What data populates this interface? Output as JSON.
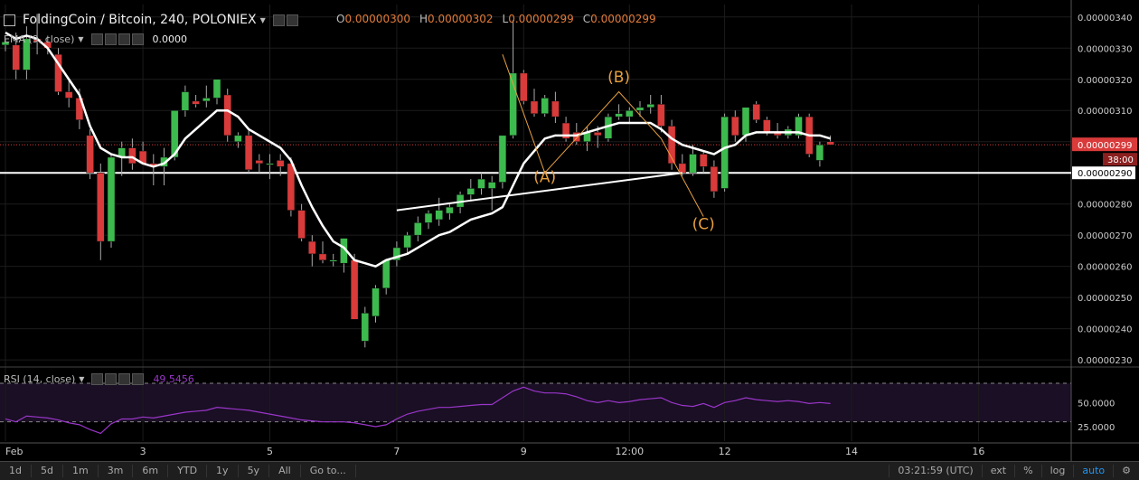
{
  "header": {
    "title": "FoldingCoin / Bitcoin, 240, POLONIEX",
    "ohlc": [
      {
        "key": "O",
        "value": "0.00000300"
      },
      {
        "key": "H",
        "value": "0.00000302"
      },
      {
        "key": "L",
        "value": "0.00000299"
      },
      {
        "key": "C",
        "value": "0.00000299"
      }
    ]
  },
  "ema_legend": {
    "label": "EMA (9, close)",
    "value": "0.0000"
  },
  "rsi_legend": {
    "label": "RSI (14, close)",
    "value": "49.5456"
  },
  "colors": {
    "up": "#3dba4e",
    "down": "#d93a3a",
    "ema": "#ffffff",
    "rsi": "#9a35c9",
    "annotation": "#e8a040",
    "price_badge": "#d93a3a"
  },
  "toolbar": {
    "timeframes": [
      "1d",
      "5d",
      "1m",
      "3m",
      "6m",
      "YTD",
      "1y",
      "5y",
      "All",
      "Go to..."
    ],
    "clock": "03:21:59 (UTC)",
    "right": [
      "ext",
      "%",
      "log",
      "auto"
    ]
  },
  "chart_data": [
    {
      "type": "candlestick",
      "title": "FoldingCoin / Bitcoin, 240, POLONIEX",
      "x_ticks": [
        {
          "label": "Feb",
          "index": 0
        },
        {
          "label": "3",
          "index": 13
        },
        {
          "label": "5",
          "index": 25
        },
        {
          "label": "7",
          "index": 37
        },
        {
          "label": "9",
          "index": 49
        },
        {
          "label": "12:00",
          "index": 59
        },
        {
          "label": "12",
          "index": 68
        },
        {
          "label": "14",
          "index": 80
        },
        {
          "label": "16",
          "index": 92
        }
      ],
      "y_range": [
        2.28e-06,
        3.44e-06
      ],
      "y_ticks": [
        "0.00000340",
        "0.00000330",
        "0.00000320",
        "0.00000310",
        "0.00000300",
        "0.00000290",
        "0.00000280",
        "0.00000270",
        "0.00000260",
        "0.00000250",
        "0.00000240",
        "0.00000230"
      ],
      "price_marker": {
        "value": 2.99e-06,
        "label": "0.00000299",
        "countdown": "38:00"
      },
      "horizontal_line": {
        "value": 2.9e-06,
        "label": "0.00000290"
      },
      "candles": [
        [
          3.31e-06,
          3.33e-06,
          3.29e-06,
          3.32e-06
        ],
        [
          3.31e-06,
          3.35e-06,
          3.2e-06,
          3.23e-06
        ],
        [
          3.23e-06,
          3.37e-06,
          3.2e-06,
          3.33e-06
        ],
        [
          3.33e-06,
          3.41e-06,
          3.28e-06,
          3.32e-06
        ],
        [
          3.32e-06,
          3.34e-06,
          3.28e-06,
          3.3e-06
        ],
        [
          3.28e-06,
          3.3e-06,
          3.15e-06,
          3.16e-06
        ],
        [
          3.16e-06,
          3.2e-06,
          3.11e-06,
          3.14e-06
        ],
        [
          3.14e-06,
          3.17e-06,
          3.04e-06,
          3.07e-06
        ],
        [
          3.02e-06,
          3.04e-06,
          2.88e-06,
          2.9e-06
        ],
        [
          2.9e-06,
          2.93e-06,
          2.62e-06,
          2.68e-06
        ],
        [
          2.68e-06,
          2.96e-06,
          2.66e-06,
          2.95e-06
        ],
        [
          2.95e-06,
          3e-06,
          2.89e-06,
          2.98e-06
        ],
        [
          2.98e-06,
          3.01e-06,
          2.91e-06,
          2.93e-06
        ],
        [
          2.97e-06,
          3e-06,
          2.93e-06,
          2.93e-06
        ],
        [
          2.93e-06,
          2.96e-06,
          2.86e-06,
          2.92e-06
        ],
        [
          2.92e-06,
          2.98e-06,
          2.86e-06,
          2.95e-06
        ],
        [
          2.95e-06,
          3.1e-06,
          2.94e-06,
          3.1e-06
        ],
        [
          3.1e-06,
          3.18e-06,
          3.08e-06,
          3.16e-06
        ],
        [
          3.13e-06,
          3.15e-06,
          3.11e-06,
          3.12e-06
        ],
        [
          3.13e-06,
          3.18e-06,
          3.11e-06,
          3.14e-06
        ],
        [
          3.14e-06,
          3.2e-06,
          3.12e-06,
          3.2e-06
        ],
        [
          3.15e-06,
          3.17e-06,
          3e-06,
          3.02e-06
        ],
        [
          3e-06,
          3.03e-06,
          2.98e-06,
          3.02e-06
        ],
        [
          3.02e-06,
          3.04e-06,
          2.9e-06,
          2.91e-06
        ],
        [
          2.94e-06,
          2.96e-06,
          2.9e-06,
          2.93e-06
        ],
        [
          2.93e-06,
          2.96e-06,
          2.88e-06,
          2.93e-06
        ],
        [
          2.94e-06,
          2.96e-06,
          2.89e-06,
          2.92e-06
        ],
        [
          2.93e-06,
          2.95e-06,
          2.76e-06,
          2.78e-06
        ],
        [
          2.78e-06,
          2.8e-06,
          2.68e-06,
          2.69e-06
        ],
        [
          2.68e-06,
          2.7e-06,
          2.6e-06,
          2.64e-06
        ],
        [
          2.64e-06,
          2.68e-06,
          2.61e-06,
          2.62e-06
        ],
        [
          2.62e-06,
          2.64e-06,
          2.6e-06,
          2.62e-06
        ],
        [
          2.61e-06,
          2.69e-06,
          2.58e-06,
          2.69e-06
        ],
        [
          2.62e-06,
          2.64e-06,
          2.43e-06,
          2.43e-06
        ],
        [
          2.36e-06,
          2.47e-06,
          2.34e-06,
          2.45e-06
        ],
        [
          2.44e-06,
          2.54e-06,
          2.42e-06,
          2.53e-06
        ],
        [
          2.53e-06,
          2.62e-06,
          2.51e-06,
          2.62e-06
        ],
        [
          2.62e-06,
          2.68e-06,
          2.6e-06,
          2.66e-06
        ],
        [
          2.66e-06,
          2.71e-06,
          2.64e-06,
          2.7e-06
        ],
        [
          2.7e-06,
          2.76e-06,
          2.68e-06,
          2.74e-06
        ],
        [
          2.74e-06,
          2.78e-06,
          2.72e-06,
          2.77e-06
        ],
        [
          2.75e-06,
          2.82e-06,
          2.73e-06,
          2.78e-06
        ],
        [
          2.77e-06,
          2.8e-06,
          2.75e-06,
          2.79e-06
        ],
        [
          2.79e-06,
          2.84e-06,
          2.77e-06,
          2.83e-06
        ],
        [
          2.83e-06,
          2.88e-06,
          2.81e-06,
          2.85e-06
        ],
        [
          2.85e-06,
          2.9e-06,
          2.83e-06,
          2.88e-06
        ],
        [
          2.85e-06,
          2.89e-06,
          2.78e-06,
          2.87e-06
        ],
        [
          2.87e-06,
          3.02e-06,
          2.85e-06,
          3.02e-06
        ],
        [
          3.02e-06,
          3.39e-06,
          3.01e-06,
          3.22e-06
        ],
        [
          3.22e-06,
          3.23e-06,
          3.12e-06,
          3.13e-06
        ],
        [
          3.13e-06,
          3.17e-06,
          3.08e-06,
          3.09e-06
        ],
        [
          3.09e-06,
          3.15e-06,
          3.08e-06,
          3.14e-06
        ],
        [
          3.13e-06,
          3.16e-06,
          3.06e-06,
          3.08e-06
        ],
        [
          3.06e-06,
          3.08e-06,
          3e-06,
          3.01e-06
        ],
        [
          3.03e-06,
          3.06e-06,
          2.99e-06,
          3e-06
        ],
        [
          3e-06,
          3.05e-06,
          2.97e-06,
          3.03e-06
        ],
        [
          3.03e-06,
          3.05e-06,
          2.98e-06,
          3.02e-06
        ],
        [
          3.01e-06,
          3.09e-06,
          3e-06,
          3.08e-06
        ],
        [
          3.08e-06,
          3.12e-06,
          3.07e-06,
          3.09e-06
        ],
        [
          3.08e-06,
          3.11e-06,
          3.06e-06,
          3.1e-06
        ],
        [
          3.1e-06,
          3.13e-06,
          3.08e-06,
          3.11e-06
        ],
        [
          3.11e-06,
          3.15e-06,
          3.09e-06,
          3.12e-06
        ],
        [
          3.12e-06,
          3.15e-06,
          3.03e-06,
          3.05e-06
        ],
        [
          3.05e-06,
          3.07e-06,
          2.91e-06,
          2.93e-06
        ],
        [
          2.93e-06,
          2.96e-06,
          2.89e-06,
          2.9e-06
        ],
        [
          2.9e-06,
          2.99e-06,
          2.89e-06,
          2.96e-06
        ],
        [
          2.96e-06,
          2.97e-06,
          2.9e-06,
          2.92e-06
        ],
        [
          2.92e-06,
          2.94e-06,
          2.82e-06,
          2.84e-06
        ],
        [
          2.85e-06,
          3.09e-06,
          2.84e-06,
          3.08e-06
        ],
        [
          3.08e-06,
          3.1e-06,
          3e-06,
          3.02e-06
        ],
        [
          3.02e-06,
          3.11e-06,
          3e-06,
          3.11e-06
        ],
        [
          3.12e-06,
          3.13e-06,
          3.06e-06,
          3.07e-06
        ],
        [
          3.07e-06,
          3.08e-06,
          3.02e-06,
          3.03e-06
        ],
        [
          3.03e-06,
          3.06e-06,
          3.01e-06,
          3.02e-06
        ],
        [
          3.02e-06,
          3.05e-06,
          3.01e-06,
          3.04e-06
        ],
        [
          3.02e-06,
          3.09e-06,
          3.01e-06,
          3.08e-06
        ],
        [
          3.08e-06,
          3.09e-06,
          2.95e-06,
          2.96e-06
        ],
        [
          2.94e-06,
          3e-06,
          2.92e-06,
          2.99e-06
        ],
        [
          3e-06,
          3.02e-06,
          2.99e-06,
          2.99e-06
        ]
      ],
      "ema": [
        3.35e-06,
        3.33e-06,
        3.34e-06,
        3.33e-06,
        3.3e-06,
        3.25e-06,
        3.2e-06,
        3.15e-06,
        3.05e-06,
        2.98e-06,
        2.96e-06,
        2.95e-06,
        2.95e-06,
        2.93e-06,
        2.92e-06,
        2.93e-06,
        2.96e-06,
        3.01e-06,
        3.04e-06,
        3.07e-06,
        3.1e-06,
        3.1e-06,
        3.08e-06,
        3.04e-06,
        3.02e-06,
        3e-06,
        2.98e-06,
        2.94e-06,
        2.86e-06,
        2.79e-06,
        2.73e-06,
        2.68e-06,
        2.66e-06,
        2.62e-06,
        2.61e-06,
        2.6e-06,
        2.62e-06,
        2.63e-06,
        2.64e-06,
        2.66e-06,
        2.68e-06,
        2.7e-06,
        2.71e-06,
        2.73e-06,
        2.75e-06,
        2.76e-06,
        2.77e-06,
        2.79e-06,
        2.86e-06,
        2.93e-06,
        2.97e-06,
        3.01e-06,
        3.02e-06,
        3.02e-06,
        3.02e-06,
        3.03e-06,
        3.04e-06,
        3.05e-06,
        3.06e-06,
        3.06e-06,
        3.06e-06,
        3.06e-06,
        3.04e-06,
        3.01e-06,
        2.99e-06,
        2.98e-06,
        2.97e-06,
        2.96e-06,
        2.98e-06,
        2.99e-06,
        3.02e-06,
        3.03e-06,
        3.03e-06,
        3.03e-06,
        3.03e-06,
        3.03e-06,
        3.02e-06,
        3.02e-06,
        3.01e-06
      ],
      "trendline": {
        "from": [
          37,
          2.78e-06
        ],
        "to": [
          64,
          2.9e-06
        ]
      },
      "abc_pattern": [
        [
          47,
          3.28e-06
        ],
        [
          51,
          2.9e-06
        ],
        [
          58,
          3.16e-06
        ],
        [
          62,
          3.01e-06
        ],
        [
          66,
          2.76e-06
        ]
      ],
      "annotations": [
        {
          "text": "(A)",
          "index": 51,
          "value": 2.87e-06
        },
        {
          "text": "(B)",
          "index": 58,
          "value": 3.19e-06
        },
        {
          "text": "(C)",
          "index": 66,
          "value": 2.72e-06
        }
      ]
    },
    {
      "type": "line",
      "title": "RSI (14, close)",
      "y_range": [
        10,
        85
      ],
      "y_ticks": [
        "50.0000",
        "25.0000"
      ],
      "bands": [
        30,
        70
      ],
      "values": [
        33,
        30,
        36,
        35,
        34,
        32,
        29,
        27,
        22,
        18,
        28,
        33,
        33,
        35,
        34,
        36,
        38,
        40,
        41,
        42,
        45,
        44,
        43,
        42,
        40,
        38,
        36,
        34,
        32,
        31,
        30,
        30,
        30,
        29,
        27,
        25,
        27,
        33,
        38,
        41,
        43,
        45,
        45,
        46,
        47,
        48,
        48,
        55,
        62,
        66,
        62,
        60,
        60,
        59,
        56,
        52,
        50,
        52,
        50,
        51,
        53,
        54,
        55,
        50,
        47,
        46,
        49,
        45,
        50,
        52,
        55,
        53,
        52,
        51,
        52,
        51,
        49,
        50,
        49
      ]
    }
  ]
}
